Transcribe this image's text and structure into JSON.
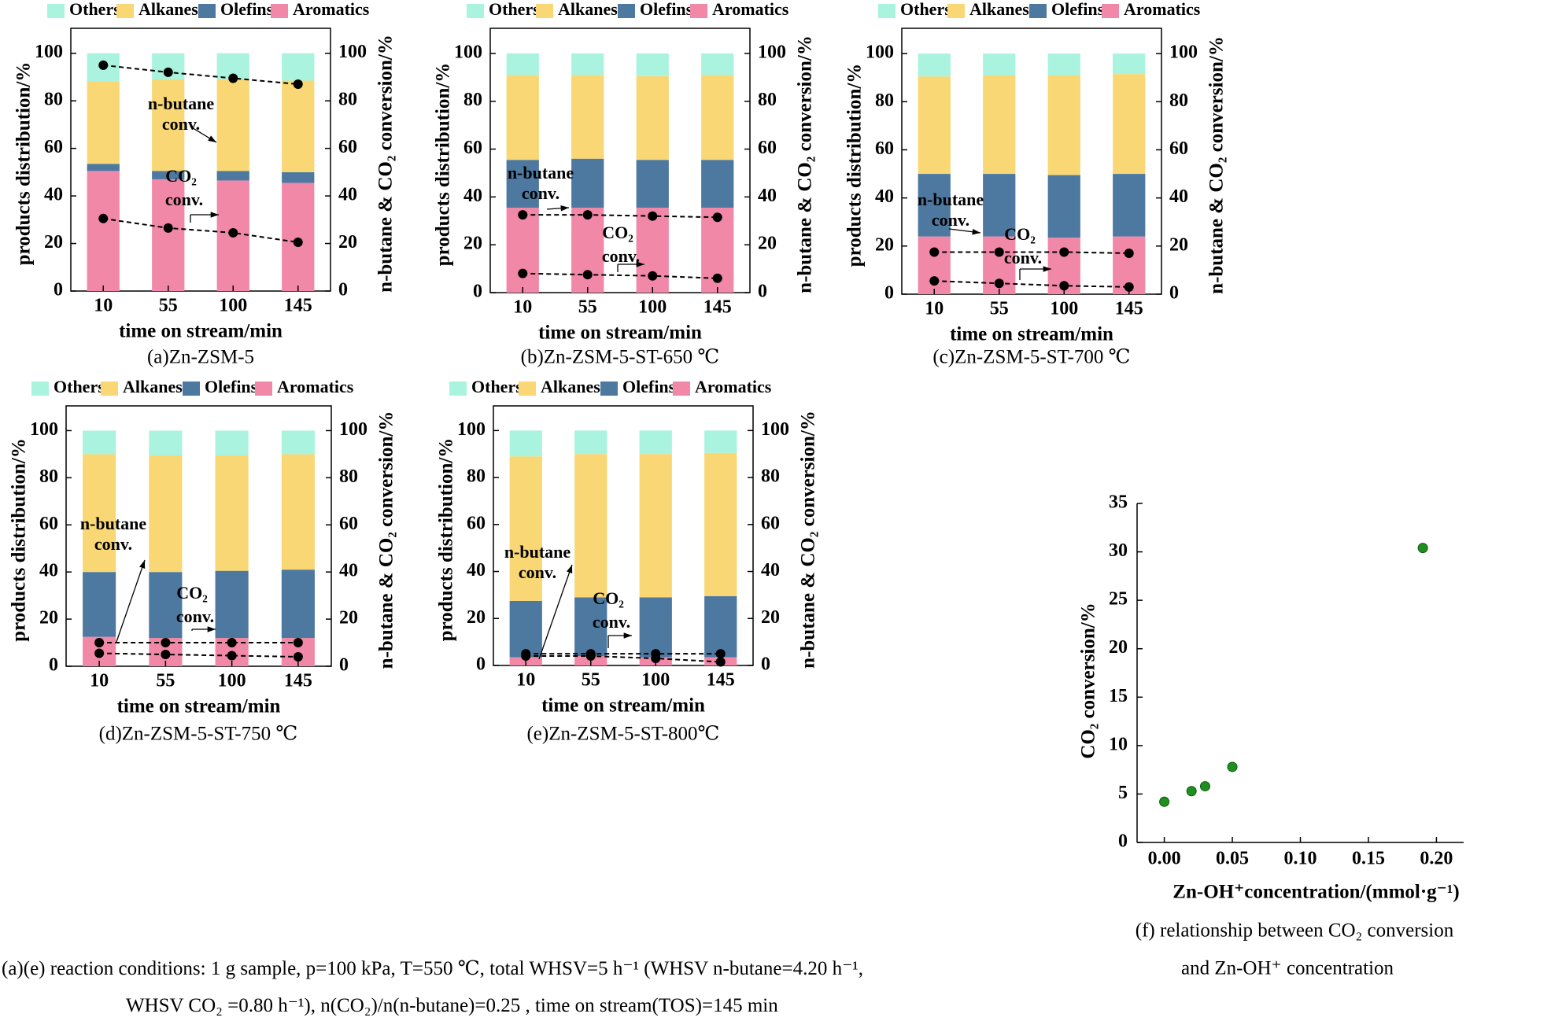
{
  "figure": {
    "colors": {
      "others": "#a9f3df",
      "alkanes": "#f8d774",
      "olefins": "#4d78a0",
      "aromatics": "#f188a8",
      "marker": "#000000",
      "scatter": "#1f8f1f"
    },
    "legend": [
      "Others",
      "Alkanes",
      "Olefins",
      "Aromatics"
    ],
    "footnote_line1": "(a)(e) reaction conditions: 1 g sample, p=100 kPa, T=550 ℃, total WHSV=5 h⁻¹ (WHSV n-butane=4.20 h⁻¹,",
    "footnote_line2": "WHSV CO₂ =0.80 h⁻¹), n(CO₂)/n(n-butane)=0.25 , time on stream(TOS)=145 min"
  },
  "chart_data": [
    {
      "id": "a",
      "type": "bar",
      "stacked": true,
      "title": "(a)Zn-ZSM-5",
      "xlabel": "time on stream/min",
      "ylabel": "products distribution/%",
      "y2label": "n-butane & CO₂ conversion/%",
      "categories": [
        "10",
        "55",
        "100",
        "145"
      ],
      "ylim": [
        0,
        100
      ],
      "y2lim": [
        0,
        100
      ],
      "yticks": [
        "0",
        "20",
        "40",
        "60",
        "80",
        "100"
      ],
      "series": [
        {
          "name": "Aromatics",
          "values": [
            50.5,
            47,
            46.5,
            45.5
          ]
        },
        {
          "name": "Olefins",
          "values": [
            3,
            3.5,
            4,
            4.5
          ]
        },
        {
          "name": "Alkanes",
          "values": [
            34.5,
            38.5,
            38.5,
            38.5
          ]
        },
        {
          "name": "Others",
          "values": [
            12,
            11,
            11,
            11.5
          ]
        }
      ],
      "conversion_series": [
        {
          "name": "n-butane conv.",
          "values": [
            95,
            92,
            89.5,
            87
          ]
        },
        {
          "name": "CO₂ conv.",
          "values": [
            30.5,
            26.5,
            24.5,
            20.5
          ]
        }
      ],
      "annotations": {
        "nbutane": [
          "n-butane",
          "conv."
        ],
        "co2": [
          "CO₂",
          "conv."
        ]
      }
    },
    {
      "id": "b",
      "type": "bar",
      "stacked": true,
      "title": "(b)Zn-ZSM-5-ST-650 ℃",
      "xlabel": "time on stream/min",
      "ylabel": "products distribution/%",
      "y2label": "n-butane & CO₂ conversion/%",
      "categories": [
        "10",
        "55",
        "100",
        "145"
      ],
      "ylim": [
        0,
        100
      ],
      "y2lim": [
        0,
        100
      ],
      "yticks": [
        "0",
        "20",
        "40",
        "60",
        "80",
        "100"
      ],
      "series": [
        {
          "name": "Aromatics",
          "values": [
            35.5,
            35.5,
            35.5,
            35.5
          ]
        },
        {
          "name": "Olefins",
          "values": [
            20,
            20.5,
            20,
            20
          ]
        },
        {
          "name": "Alkanes",
          "values": [
            35.5,
            35,
            35,
            35.5
          ]
        },
        {
          "name": "Others",
          "values": [
            9,
            9,
            9.5,
            9
          ]
        }
      ],
      "conversion_series": [
        {
          "name": "n-butane conv.",
          "values": [
            32.5,
            32.5,
            32,
            31.5
          ]
        },
        {
          "name": "CO₂ conv.",
          "values": [
            8,
            7.5,
            7,
            6
          ]
        }
      ],
      "annotations": {
        "nbutane": [
          "n-butane",
          "conv."
        ],
        "co2": [
          "CO₂",
          "conv."
        ]
      }
    },
    {
      "id": "c",
      "type": "bar",
      "stacked": true,
      "title": "(c)Zn-ZSM-5-ST-700 ℃",
      "xlabel": "time on stream/min",
      "ylabel": "products distribution/%",
      "y2label": "n-butane & CO₂ conversion/%",
      "categories": [
        "10",
        "55",
        "100",
        "145"
      ],
      "ylim": [
        0,
        100
      ],
      "y2lim": [
        0,
        100
      ],
      "yticks": [
        "0",
        "20",
        "40",
        "60",
        "80",
        "100"
      ],
      "series": [
        {
          "name": "Aromatics",
          "values": [
            24,
            24,
            23.5,
            24
          ]
        },
        {
          "name": "Olefins",
          "values": [
            26,
            26,
            26,
            26
          ]
        },
        {
          "name": "Alkanes",
          "values": [
            40.5,
            41,
            41.5,
            41.5
          ]
        },
        {
          "name": "Others",
          "values": [
            9.5,
            9,
            9,
            8.5
          ]
        }
      ],
      "conversion_series": [
        {
          "name": "n-butane conv.",
          "values": [
            17.5,
            17.5,
            17.5,
            17
          ]
        },
        {
          "name": "CO₂ conv.",
          "values": [
            5.5,
            4.5,
            3.5,
            3
          ]
        }
      ],
      "annotations": {
        "nbutane": [
          "n-butane",
          "conv."
        ],
        "co2": [
          "CO₂",
          "conv."
        ]
      }
    },
    {
      "id": "d",
      "type": "bar",
      "stacked": true,
      "title": "(d)Zn-ZSM-5-ST-750 ℃",
      "xlabel": "time on stream/min",
      "ylabel": "products distribution/%",
      "y2label": "n-butane & CO₂ conversion/%",
      "categories": [
        "10",
        "55",
        "100",
        "145"
      ],
      "ylim": [
        0,
        100
      ],
      "y2lim": [
        0,
        100
      ],
      "yticks": [
        "0",
        "20",
        "40",
        "60",
        "80",
        "100"
      ],
      "series": [
        {
          "name": "Aromatics",
          "values": [
            12.5,
            12,
            12,
            12
          ]
        },
        {
          "name": "Olefins",
          "values": [
            27.5,
            28,
            28.5,
            29
          ]
        },
        {
          "name": "Alkanes",
          "values": [
            50,
            49.5,
            49,
            49
          ]
        },
        {
          "name": "Others",
          "values": [
            10,
            10.5,
            10.5,
            10
          ]
        }
      ],
      "conversion_series": [
        {
          "name": "n-butane conv.",
          "values": [
            10,
            10,
            10,
            10
          ]
        },
        {
          "name": "CO₂ conv.",
          "values": [
            5.5,
            5,
            4.5,
            4
          ]
        }
      ],
      "annotations": {
        "nbutane": [
          "n-butane",
          "conv."
        ],
        "co2": [
          "CO₂",
          "conv."
        ]
      }
    },
    {
      "id": "e",
      "type": "bar",
      "stacked": true,
      "title": "(e)Zn-ZSM-5-ST-800℃",
      "xlabel": "time on stream/min",
      "ylabel": "products distribution/%",
      "y2label": "n-butane & CO₂ conversion/%",
      "categories": [
        "10",
        "55",
        "100",
        "145"
      ],
      "ylim": [
        0,
        100
      ],
      "y2lim": [
        0,
        100
      ],
      "yticks": [
        "0",
        "20",
        "40",
        "60",
        "80",
        "100"
      ],
      "series": [
        {
          "name": "Aromatics",
          "values": [
            3.5,
            4,
            3.5,
            3.5
          ]
        },
        {
          "name": "Olefins",
          "values": [
            24,
            25,
            25.5,
            26
          ]
        },
        {
          "name": "Alkanes",
          "values": [
            61.5,
            61,
            61,
            61
          ]
        },
        {
          "name": "Others",
          "values": [
            11,
            10,
            10,
            9.5
          ]
        }
      ],
      "conversion_series": [
        {
          "name": "n-butane conv.",
          "values": [
            5,
            5,
            5,
            5
          ]
        },
        {
          "name": "CO₂ conv.",
          "values": [
            4,
            4,
            3,
            1.5
          ]
        }
      ],
      "annotations": {
        "nbutane": [
          "n-butane",
          "conv."
        ],
        "co2": [
          "CO₂",
          "conv."
        ]
      }
    },
    {
      "id": "f",
      "type": "scatter",
      "title": "(f) relationship between CO₂ conversion",
      "title_line2": "and Zn-OH⁺ concentration",
      "xlabel": "Zn-OH⁺concentration/(mmol·g⁻¹)",
      "ylabel": "CO₂ conversion/%",
      "xlim": [
        -0.02,
        0.22
      ],
      "ylim": [
        0,
        35
      ],
      "xticks": [
        "0.00",
        "0.05",
        "0.10",
        "0.15",
        "0.20"
      ],
      "yticks": [
        "0",
        "5",
        "10",
        "15",
        "20",
        "25",
        "30",
        "35"
      ],
      "x": [
        0.0,
        0.02,
        0.03,
        0.05,
        0.19
      ],
      "y": [
        4.2,
        5.3,
        5.8,
        7.8,
        30.4
      ]
    }
  ]
}
